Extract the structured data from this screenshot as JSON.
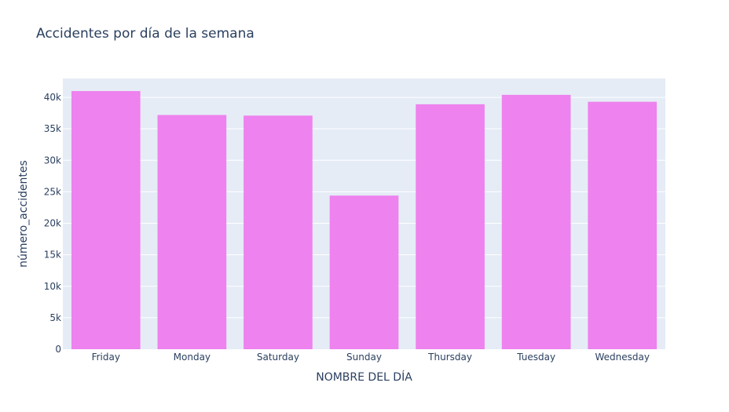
{
  "chart_data": {
    "type": "bar",
    "title": "Accidentes por día de la semana",
    "xlabel": "NOMBRE DEL DÍA",
    "ylabel": "número_accidentes",
    "categories": [
      "Friday",
      "Monday",
      "Saturday",
      "Sunday",
      "Thursday",
      "Tuesday",
      "Wednesday"
    ],
    "values": [
      41000,
      37200,
      37100,
      24400,
      38900,
      40400,
      39300
    ],
    "ylim": [
      0,
      43000
    ],
    "yticks": [
      0,
      5000,
      10000,
      15000,
      20000,
      25000,
      30000,
      35000,
      40000
    ],
    "ytick_labels": [
      "0",
      "5k",
      "10k",
      "15k",
      "20k",
      "25k",
      "30k",
      "35k",
      "40k"
    ],
    "grid": true,
    "colors": {
      "bar": "#ee82ee",
      "plot_background": "#e5ecf6",
      "grid": "#ffffff",
      "text": "#2a3f5f"
    }
  }
}
